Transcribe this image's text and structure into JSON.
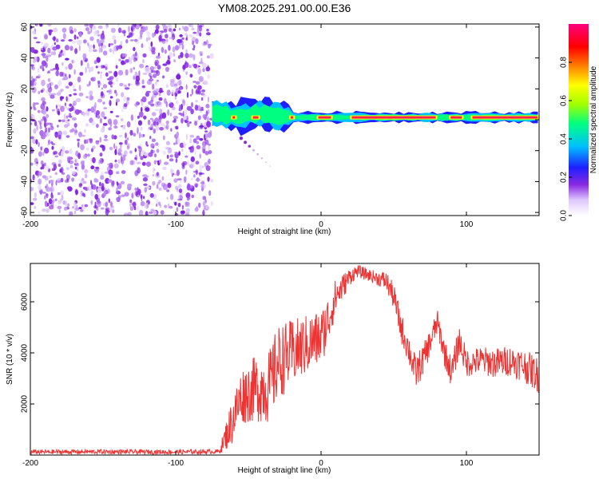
{
  "chart_data": [
    {
      "type": "heatmap",
      "title": "YM08.2025.291.00.00.E36",
      "xlabel": "Height of straight line (km)",
      "ylabel": "Frequency (Hz)",
      "xlim": [
        -200,
        150
      ],
      "ylim": [
        -62,
        62
      ],
      "xticks": [
        -200,
        -100,
        0,
        100
      ],
      "xtick_labels": [
        "-200",
        "-100",
        "0",
        "100"
      ],
      "yticks": [
        -60,
        -40,
        -20,
        0,
        20,
        40,
        60
      ],
      "ytick_labels": [
        "-60",
        "-40",
        "-20",
        "0",
        "20",
        "40",
        "60"
      ],
      "colorbar": {
        "label": "Normalized spectral amplitude",
        "range": [
          0,
          1
        ],
        "ticks": [
          0.0,
          0.2,
          0.4,
          0.6,
          0.8
        ],
        "tick_labels": [
          "0.0",
          "0.2",
          "0.4",
          "0.6",
          "0.8"
        ],
        "colors": [
          "#ffffff",
          "#8a2be2",
          "#1e1eff",
          "#00c0ff",
          "#00ff80",
          "#a0ff00",
          "#ffff00",
          "#ff8000",
          "#ff0000",
          "#ff0080"
        ]
      },
      "noise_region_x": [
        -200,
        -75
      ],
      "band_center_hz": 1.5,
      "band_x_range": [
        -75,
        150
      ],
      "secondary_streak": {
        "x": [
          -55,
          -35
        ],
        "freq_hz": [
          -12,
          -30
        ]
      }
    },
    {
      "type": "line",
      "xlabel": "Height of straight line (km)",
      "ylabel": "SNR (10 * v/v)",
      "xlim": [
        -200,
        150
      ],
      "ylim": [
        0,
        7500
      ],
      "xticks": [
        -200,
        -100,
        0,
        100
      ],
      "xtick_labels": [
        "-200",
        "-100",
        "0",
        "100"
      ],
      "yticks": [
        2000,
        4000,
        6000
      ],
      "ytick_labels": [
        "2000",
        "4000",
        "6000"
      ],
      "color": "#ee3333",
      "envelope": {
        "x": [
          -200,
          -150,
          -100,
          -70,
          -62,
          -55,
          -45,
          -35,
          -30,
          -20,
          -10,
          0,
          5,
          10,
          15,
          20,
          25,
          30,
          35,
          40,
          45,
          50,
          55,
          60,
          65,
          70,
          75,
          80,
          85,
          90,
          95,
          100,
          110,
          120,
          130,
          140,
          150
        ],
        "y": [
          120,
          130,
          120,
          140,
          1200,
          2300,
          2600,
          2700,
          3600,
          4000,
          4300,
          4600,
          5300,
          6200,
          6600,
          7000,
          7200,
          7100,
          7000,
          6900,
          6800,
          6200,
          5000,
          4200,
          3200,
          3700,
          4400,
          5200,
          4000,
          3200,
          4500,
          3600,
          3700,
          3600,
          3700,
          3500,
          3100
        ],
        "amp": [
          90,
          90,
          90,
          90,
          900,
          1100,
          1300,
          1500,
          1500,
          1300,
          1200,
          1100,
          1000,
          700,
          500,
          350,
          250,
          250,
          250,
          300,
          400,
          500,
          600,
          600,
          700,
          600,
          550,
          500,
          550,
          600,
          600,
          550,
          550,
          600,
          600,
          650,
          700
        ]
      }
    }
  ]
}
